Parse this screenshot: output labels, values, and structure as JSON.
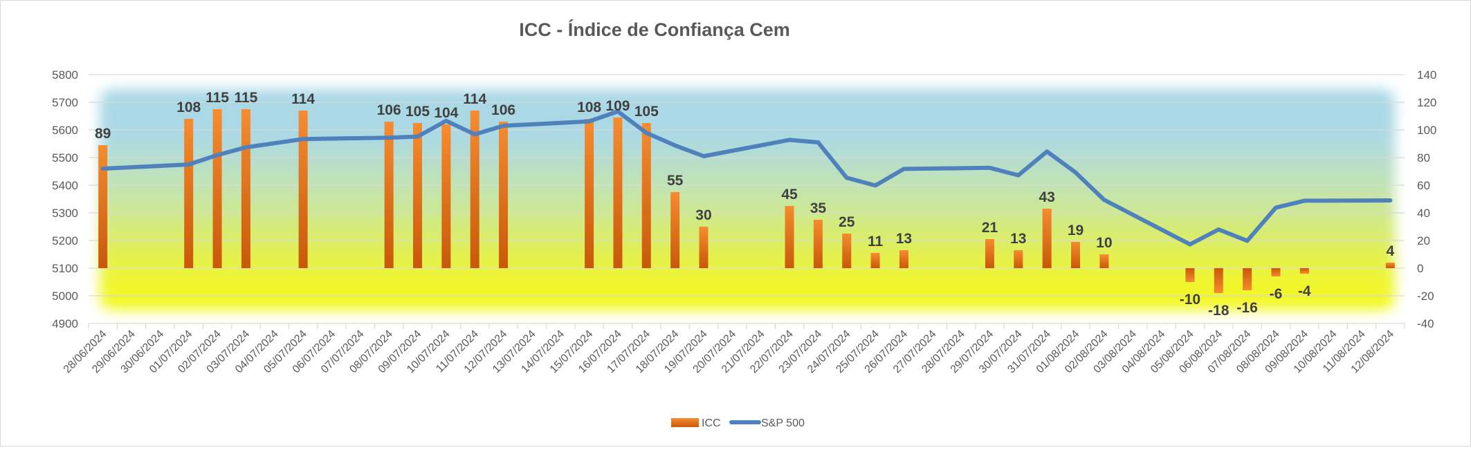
{
  "chart_data": {
    "type": "bar+line",
    "title": "ICC - Índice de Confiança Cem",
    "categories": [
      "28/06/2024",
      "29/06/2024",
      "30/06/2024",
      "01/07/2024",
      "02/07/2024",
      "03/07/2024",
      "04/07/2024",
      "05/07/2024",
      "06/07/2024",
      "07/07/2024",
      "08/07/2024",
      "09/07/2024",
      "10/07/2024",
      "11/07/2024",
      "12/07/2024",
      "13/07/2024",
      "14/07/2024",
      "15/07/2024",
      "16/07/2024",
      "17/07/2024",
      "18/07/2024",
      "19/07/2024",
      "20/07/2024",
      "21/07/2024",
      "22/07/2024",
      "23/07/2024",
      "24/07/2024",
      "25/07/2024",
      "26/07/2024",
      "27/07/2024",
      "28/07/2024",
      "29/07/2024",
      "30/07/2024",
      "31/07/2024",
      "01/08/2024",
      "02/08/2024",
      "03/08/2024",
      "04/08/2024",
      "05/08/2024",
      "06/08/2024",
      "07/08/2024",
      "08/08/2024",
      "09/08/2024",
      "10/08/2024",
      "11/08/2024",
      "12/08/2024"
    ],
    "series": [
      {
        "name": "ICC",
        "type": "bar",
        "axis": "right",
        "color": "#ed7d31",
        "values": [
          89,
          null,
          null,
          108,
          115,
          115,
          null,
          114,
          null,
          null,
          106,
          105,
          104,
          114,
          106,
          null,
          null,
          108,
          109,
          105,
          55,
          30,
          null,
          null,
          45,
          35,
          25,
          11,
          13,
          null,
          null,
          21,
          13,
          43,
          19,
          10,
          null,
          null,
          -10,
          -18,
          -16,
          -6,
          -4,
          null,
          null,
          4
        ]
      },
      {
        "name": "S&P 500",
        "type": "line",
        "axis": "left",
        "color": "#4f81bd",
        "values": [
          5460,
          null,
          null,
          5475,
          5509,
          5537,
          null,
          5567,
          null,
          null,
          5572,
          5576,
          5633,
          5584,
          5615,
          null,
          null,
          5631,
          5667,
          5589,
          5544,
          5505,
          null,
          null,
          5564,
          5555,
          5427,
          5399,
          5459,
          null,
          null,
          5463,
          5436,
          5522,
          5446,
          5347,
          null,
          null,
          5186,
          5240,
          5199,
          5319,
          5344,
          null,
          null,
          5345
        ]
      }
    ],
    "left_axis": {
      "min": 4900,
      "max": 5800,
      "step": 100,
      "ticks": [
        "4900",
        "5000",
        "5100",
        "5200",
        "5300",
        "5400",
        "5500",
        "5600",
        "5700",
        "5800"
      ]
    },
    "right_axis": {
      "min": -40,
      "max": 140,
      "step": 20,
      "ticks": [
        "-40",
        "-20",
        "0",
        "20",
        "40",
        "60",
        "80",
        "100",
        "120",
        "140"
      ]
    },
    "grid": true,
    "legend": {
      "position": "bottom",
      "entries": [
        "ICC",
        "S&P 500"
      ]
    },
    "background": {
      "top_color": "#a8d8e8",
      "mid_color": "#c8e6a0",
      "bottom_color": "#f2f729"
    }
  }
}
